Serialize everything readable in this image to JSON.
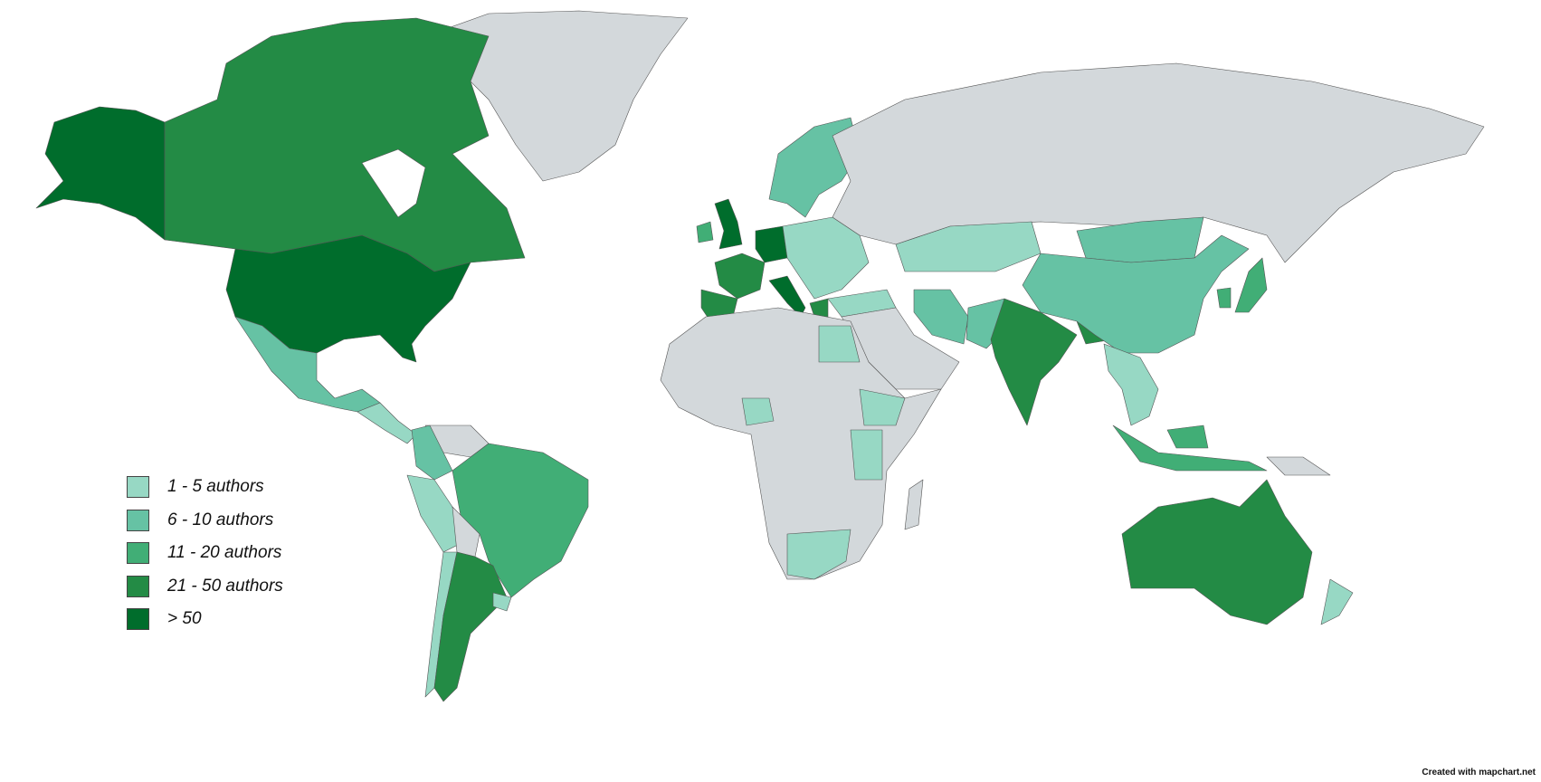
{
  "map_data": {
    "type": "choropleth",
    "no_data_color": "#d3d8db",
    "legend": [
      {
        "label": "1 - 5 authors",
        "color": "#97d8c4"
      },
      {
        "label": "6 - 10 authors",
        "color": "#66c2a4"
      },
      {
        "label": "11 - 20 authors",
        "color": "#41ae76"
      },
      {
        "label": "21 - 50 authors",
        "color": "#238b45"
      },
      {
        "label": "> 50",
        "color": "#006d2c"
      }
    ],
    "regions": [
      {
        "name": "United States",
        "level": 4
      },
      {
        "name": "Alaska",
        "level": 4
      },
      {
        "name": "Canada",
        "level": 3
      },
      {
        "name": "Greenland",
        "level": -1
      },
      {
        "name": "Mexico",
        "level": 1
      },
      {
        "name": "Central America",
        "level": 0
      },
      {
        "name": "Colombia",
        "level": 1
      },
      {
        "name": "Venezuela",
        "level": -1
      },
      {
        "name": "Peru",
        "level": 0
      },
      {
        "name": "Brazil",
        "level": 2
      },
      {
        "name": "Bolivia",
        "level": -1
      },
      {
        "name": "Chile",
        "level": 0
      },
      {
        "name": "Argentina",
        "level": 3
      },
      {
        "name": "Uruguay",
        "level": 0
      },
      {
        "name": "United Kingdom",
        "level": 4
      },
      {
        "name": "Ireland",
        "level": 2
      },
      {
        "name": "France",
        "level": 3
      },
      {
        "name": "Spain",
        "level": 3
      },
      {
        "name": "Germany",
        "level": 4
      },
      {
        "name": "Italy",
        "level": 4
      },
      {
        "name": "Greece",
        "level": 3
      },
      {
        "name": "Scandinavia",
        "level": 1
      },
      {
        "name": "Eastern Europe",
        "level": 0
      },
      {
        "name": "Turkey",
        "level": 0
      },
      {
        "name": "Russia",
        "level": -1
      },
      {
        "name": "Kazakhstan",
        "level": 0
      },
      {
        "name": "Iran",
        "level": 1
      },
      {
        "name": "Pakistan",
        "level": 1
      },
      {
        "name": "India",
        "level": 3
      },
      {
        "name": "Bangladesh",
        "level": 3
      },
      {
        "name": "China",
        "level": 1
      },
      {
        "name": "Mongolia",
        "level": 1
      },
      {
        "name": "Japan",
        "level": 2
      },
      {
        "name": "South Korea",
        "level": 2
      },
      {
        "name": "Southeast Asia",
        "level": 0
      },
      {
        "name": "Indonesia",
        "level": 2
      },
      {
        "name": "Australia",
        "level": 3
      },
      {
        "name": "New Zealand",
        "level": 0
      },
      {
        "name": "Africa",
        "level": -1
      },
      {
        "name": "Egypt",
        "level": 0
      },
      {
        "name": "Nigeria",
        "level": 0
      },
      {
        "name": "Ethiopia",
        "level": 0
      },
      {
        "name": "Kenya/Tanzania",
        "level": 0
      },
      {
        "name": "South Africa",
        "level": 0
      },
      {
        "name": "Madagascar",
        "level": -1
      }
    ]
  },
  "credit": "Created with mapchart.net"
}
